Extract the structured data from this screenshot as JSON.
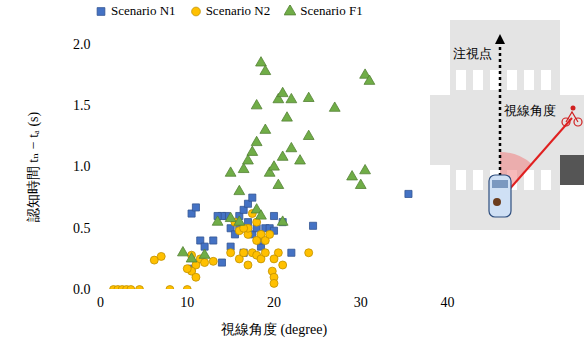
{
  "chart_data": {
    "type": "scatter",
    "x_label": "視線角度 (degree)",
    "y_label": "認知時間 tₙ − tₐ (s)",
    "xlim": [
      0,
      40
    ],
    "xticks": [
      0,
      10,
      20,
      30,
      40
    ],
    "ylim": [
      0,
      2
    ],
    "yticks": [
      {
        "value": 0,
        "label": "0.0"
      },
      {
        "value": 0.5,
        "label": "0.5"
      },
      {
        "value": 1,
        "label": "1.0"
      },
      {
        "value": 1.5,
        "label": "1.5"
      },
      {
        "value": 2,
        "label": "2.0"
      }
    ],
    "legend": "top",
    "annotations": [
      "注視点",
      "視線角度"
    ],
    "series": [
      {
        "name": "Scenario N1",
        "color": "#4472c4",
        "marker": "square",
        "x": [
          10.5,
          10.5,
          11,
          11.5,
          12,
          13,
          14,
          14.5,
          15,
          15,
          15.5,
          16,
          16,
          16.5,
          16.5,
          17,
          17.5,
          17,
          17.5,
          18,
          18.5,
          19,
          19.5,
          20,
          20,
          21,
          22,
          24.5,
          35.5,
          14,
          13.5,
          18.5,
          16.5
        ],
        "values": [
          0.17,
          0.62,
          0.67,
          0.4,
          0.35,
          0.4,
          0.22,
          0.6,
          0.35,
          0.5,
          0.45,
          0.5,
          0.6,
          0.65,
          0.5,
          0.7,
          0.75,
          0.55,
          0.45,
          0.5,
          0.35,
          0.5,
          0.5,
          0.6,
          0.48,
          0.55,
          0.3,
          0.52,
          0.78,
          0.6,
          0.6,
          0.4,
          0.3
        ]
      },
      {
        "name": "Scenario N2",
        "color": "#ffc000",
        "marker": "circle",
        "x": [
          1.5,
          2,
          2.5,
          3,
          3.5,
          4.5,
          8,
          10,
          6.2,
          7,
          10.5,
          11,
          10.5,
          11.5,
          11,
          12,
          13,
          15,
          16,
          16.5,
          17,
          17,
          17,
          17.5,
          18,
          18,
          18.5,
          18.5,
          19,
          19,
          19.5,
          19.8,
          20,
          20,
          20.5,
          21,
          20,
          24,
          15.5,
          16,
          17.5,
          18,
          16.5,
          10
        ],
        "values": [
          0,
          0,
          0,
          0,
          0,
          0,
          0,
          0,
          0.24,
          0.27,
          0.28,
          0.2,
          0.15,
          0.25,
          0.1,
          0.22,
          0.23,
          0.3,
          0.25,
          0.3,
          0.2,
          0.45,
          0.5,
          0.3,
          0.28,
          0.55,
          0.25,
          0.45,
          0.3,
          0.4,
          0.45,
          0.15,
          0.1,
          0.05,
          0.3,
          0.2,
          0.25,
          0.3,
          0.55,
          0.48,
          0.62,
          0.4,
          0.5,
          0.17
        ]
      },
      {
        "name": "Scenario F1",
        "color": "#70ad47",
        "marker": "triangle",
        "x": [
          9.5,
          10.5,
          12,
          13.5,
          15,
          15,
          16,
          16.5,
          17,
          17.5,
          18,
          18,
          18.5,
          19,
          19,
          19.5,
          20,
          20.5,
          21,
          21,
          21.5,
          21,
          22,
          22,
          23,
          24,
          24,
          27,
          29,
          30,
          30.5,
          31,
          30.5,
          18,
          18.5,
          20.5,
          16
        ],
        "values": [
          0.3,
          0.25,
          0.28,
          0.55,
          0.58,
          0.95,
          0.8,
          0.98,
          1.05,
          1.12,
          1.2,
          1.5,
          1.85,
          1.3,
          1.78,
          0.95,
          1.0,
          1.55,
          1.08,
          0.55,
          1.4,
          1.6,
          1.55,
          1.15,
          1.05,
          1.56,
          1.25,
          1.48,
          0.92,
          0.85,
          1.75,
          1.7,
          0.97,
          0.65,
          0.6,
          0.85,
          0.55
        ]
      }
    ]
  }
}
